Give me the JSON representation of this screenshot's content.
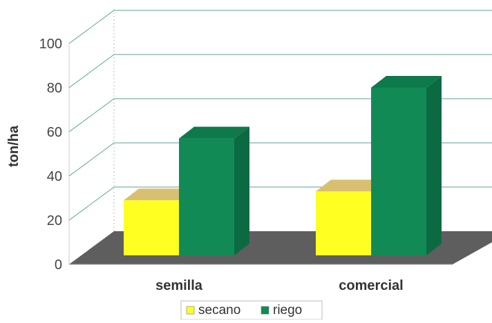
{
  "chart_data": {
    "type": "bar",
    "title": "",
    "xlabel": "",
    "ylabel": "ton/ha",
    "ylim": [
      0,
      100
    ],
    "yticks": [
      0,
      20,
      40,
      60,
      80,
      100
    ],
    "categories": [
      "semilla",
      "comercial"
    ],
    "series": [
      {
        "name": "secano",
        "values": [
          29,
          33
        ]
      },
      {
        "name": "riego",
        "values": [
          57,
          80
        ]
      }
    ],
    "grid": true,
    "legend": "bottom",
    "style": "3d-clustered-bar"
  },
  "colors": {
    "secano_front": "#ffff22",
    "secano_side": "#d8cc22",
    "secano_top": "#d8c070",
    "riego_front": "#128a55",
    "riego_side": "#0c6a42",
    "riego_top": "#0e7a4c",
    "floor": "#5e5e5e",
    "grid": "#5aa090"
  }
}
